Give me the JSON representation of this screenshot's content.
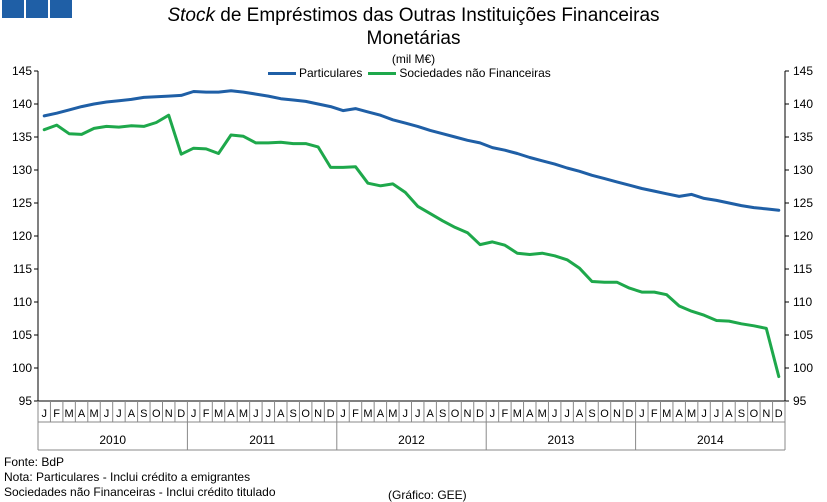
{
  "header": {
    "logo_icon": "brand-squares-icon"
  },
  "chart_data": {
    "type": "line",
    "title_italic": "Stock",
    "title_rest": " de Empréstimos das Outras Instituições Financeiras",
    "title_line2": "Monetárias",
    "unit": "(mil M€)",
    "ylim": [
      95,
      145
    ],
    "yticks": [
      95,
      100,
      105,
      110,
      115,
      120,
      125,
      130,
      135,
      140,
      145
    ],
    "month_labels": [
      "J",
      "F",
      "M",
      "A",
      "M",
      "J",
      "J",
      "A",
      "S",
      "O",
      "N",
      "D"
    ],
    "years": [
      "2010",
      "2011",
      "2012",
      "2013",
      "2014"
    ],
    "series": [
      {
        "name": "Particulares",
        "color": "#1f5fa6",
        "values": [
          138.2,
          138.6,
          139.1,
          139.6,
          140.0,
          140.3,
          140.5,
          140.7,
          141.0,
          141.1,
          141.2,
          141.3,
          141.9,
          141.8,
          141.8,
          142.0,
          141.8,
          141.5,
          141.2,
          140.8,
          140.6,
          140.4,
          140.0,
          139.6,
          139.0,
          139.3,
          138.8,
          138.3,
          137.6,
          137.1,
          136.6,
          136.0,
          135.5,
          135.0,
          134.5,
          134.1,
          133.4,
          133.0,
          132.5,
          131.9,
          131.4,
          130.9,
          130.3,
          129.8,
          129.2,
          128.7,
          128.2,
          127.7,
          127.2,
          126.8,
          126.4,
          126.0,
          126.3,
          125.7,
          125.4,
          125.0,
          124.6,
          124.3,
          124.1,
          123.9
        ]
      },
      {
        "name": "Sociedades não Financeiras",
        "color": "#1ea84b",
        "values": [
          136.1,
          136.8,
          135.5,
          135.4,
          136.3,
          136.6,
          136.5,
          136.7,
          136.6,
          137.2,
          138.3,
          132.4,
          133.3,
          133.2,
          132.5,
          135.3,
          135.1,
          134.1,
          134.1,
          134.2,
          134.0,
          134.0,
          133.5,
          130.4,
          130.4,
          130.5,
          128.0,
          127.6,
          127.9,
          126.6,
          124.5,
          123.4,
          122.3,
          121.3,
          120.5,
          118.7,
          119.1,
          118.6,
          117.4,
          117.2,
          117.4,
          117.0,
          116.4,
          115.1,
          113.1,
          113.0,
          113.0,
          112.1,
          111.5,
          111.5,
          111.1,
          109.4,
          108.6,
          108.0,
          107.2,
          107.1,
          106.7,
          106.4,
          106.0,
          98.7
        ]
      }
    ]
  },
  "footer": {
    "source": "Fonte: BdP",
    "note1": "Nota: Particulares - Inclui crédito a emigrantes",
    "note2": "Sociedades não Financeiras - Inclui crédito titulado",
    "credit": "(Gráfico: GEE)"
  }
}
